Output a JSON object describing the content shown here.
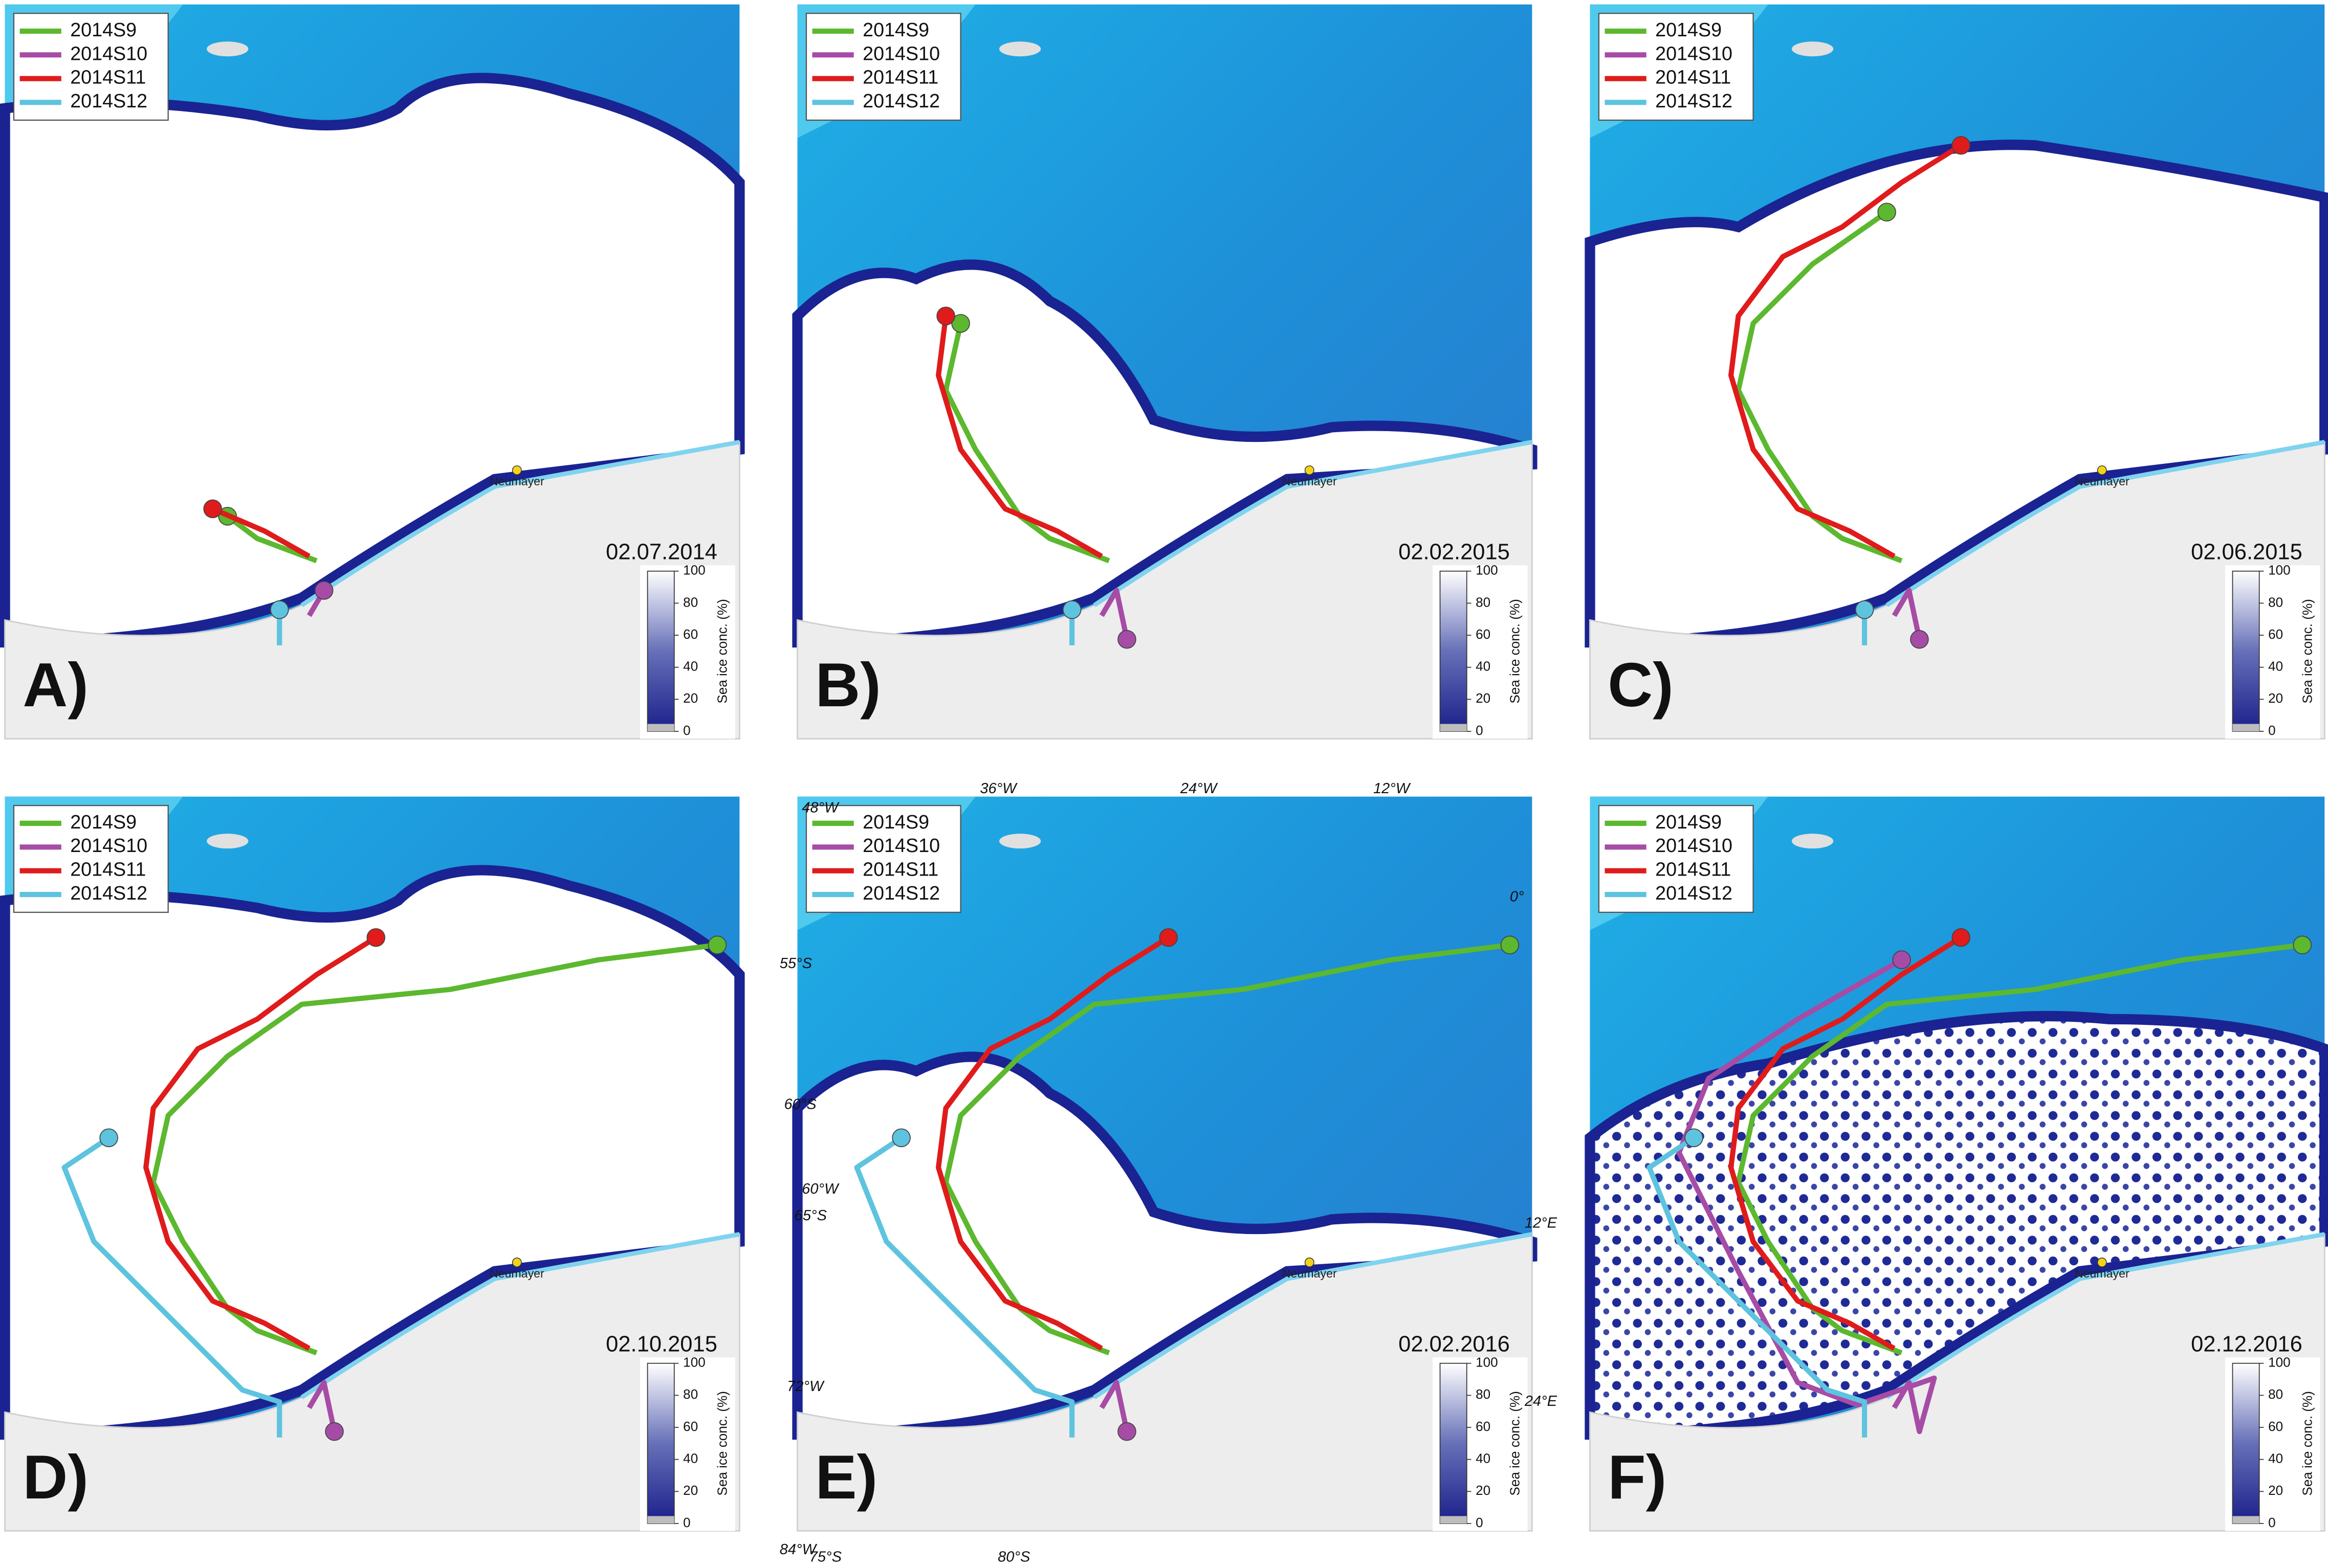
{
  "legend": [
    {
      "name": "2014S9",
      "color": "#5cb82e"
    },
    {
      "name": "2014S10",
      "color": "#a64ca6"
    },
    {
      "name": "2014S11",
      "color": "#e01b1b"
    },
    {
      "name": "2014S12",
      "color": "#5ec3df"
    }
  ],
  "colorbar": {
    "label": "Sea ice conc. (%)",
    "ticks": [
      0,
      20,
      40,
      60,
      80,
      100
    ]
  },
  "station": "Neumayer",
  "panels": [
    {
      "label": "A)",
      "date": "02.07.2014"
    },
    {
      "label": "B)",
      "date": "02.02.2015"
    },
    {
      "label": "C)",
      "date": "02.06.2015"
    },
    {
      "label": "D)",
      "date": "02.10.2015"
    },
    {
      "label": "E)",
      "date": "02.02.2016"
    },
    {
      "label": "F)",
      "date": "02.12.2016"
    }
  ],
  "graticule": [
    "48°W",
    "36°W",
    "24°W",
    "12°W",
    "0°",
    "55°S",
    "60°S",
    "65°S",
    "60°W",
    "12°E",
    "72°W",
    "24°E",
    "84°W",
    "75°S",
    "80°S"
  ]
}
